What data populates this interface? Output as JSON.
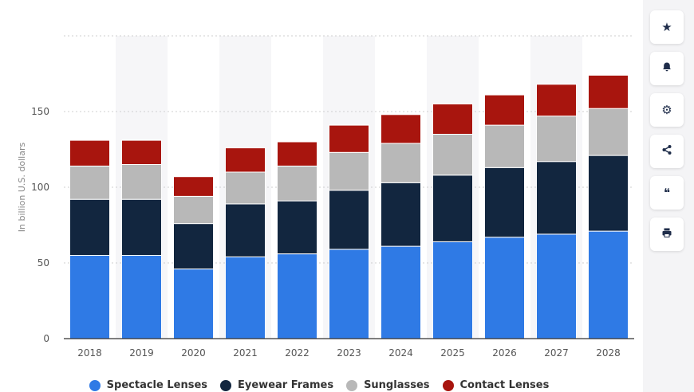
{
  "chart_data": {
    "type": "bar",
    "stacked": true,
    "categories": [
      "2018",
      "2019",
      "2020",
      "2021",
      "2022",
      "2023",
      "2024",
      "2025",
      "2026",
      "2027",
      "2028"
    ],
    "series": [
      {
        "name": "Spectacle Lenses",
        "color": "#2f7ae5",
        "values": [
          55,
          55,
          46,
          54,
          56,
          59,
          61,
          64,
          67,
          69,
          71
        ]
      },
      {
        "name": "Eyewear Frames",
        "color": "#12263f",
        "values": [
          37,
          37,
          30,
          35,
          35,
          39,
          42,
          44,
          46,
          48,
          50
        ]
      },
      {
        "name": "Sunglasses",
        "color": "#b8b8b8",
        "values": [
          22,
          23,
          18,
          21,
          23,
          25,
          26,
          27,
          28,
          30,
          31
        ]
      },
      {
        "name": "Contact Lenses",
        "color": "#a8150e",
        "values": [
          17,
          16,
          13,
          16,
          16,
          18,
          19,
          20,
          20,
          21,
          22
        ]
      }
    ],
    "ylabel": "In billion U.S. dollars",
    "xlabel": "",
    "ylim": [
      0,
      200
    ],
    "yticks": [
      0,
      50,
      100,
      150
    ],
    "grid": true,
    "legend": "bottom"
  },
  "toolbar": {
    "buttons": [
      {
        "name": "favorite-button",
        "icon": "star-icon",
        "glyph": "★"
      },
      {
        "name": "notification-button",
        "icon": "bell-icon",
        "glyph": "🔔"
      },
      {
        "name": "settings-button",
        "icon": "gear-icon",
        "glyph": "⚙"
      },
      {
        "name": "share-button",
        "icon": "share-icon",
        "glyph": "⋖"
      },
      {
        "name": "cite-button",
        "icon": "quote-icon",
        "glyph": "❝"
      },
      {
        "name": "print-button",
        "icon": "print-icon",
        "glyph": "⎙"
      }
    ]
  }
}
